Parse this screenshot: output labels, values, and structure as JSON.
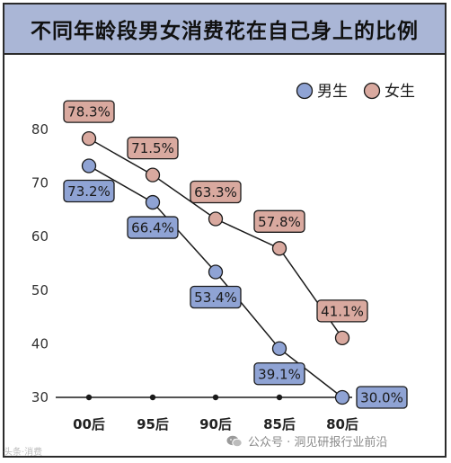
{
  "title": "不同年龄段男女消费花在自己身上的比例",
  "footer": {
    "watermark": "头条·消费",
    "source": "公众号 · 洞见研报行业前沿"
  },
  "colors": {
    "male": "#8fa3d4",
    "female": "#d9a99f",
    "title_bg": "#aab6d6"
  },
  "chart_data": {
    "type": "line",
    "title": "不同年龄段男女消费花在自己身上的比例",
    "categories": [
      "00后",
      "95后",
      "90后",
      "85后",
      "80后"
    ],
    "series": [
      {
        "name": "男生",
        "values": [
          73.2,
          66.4,
          53.4,
          39.1,
          30.0
        ],
        "labels": [
          "73.2%",
          "66.4%",
          "53.4%",
          "39.1%",
          "30.0%"
        ]
      },
      {
        "name": "女生",
        "values": [
          78.3,
          71.5,
          63.3,
          57.8,
          41.1
        ],
        "labels": [
          "78.3%",
          "71.5%",
          "63.3%",
          "57.8%",
          "41.1%"
        ]
      }
    ],
    "yticks": [
      30,
      40,
      50,
      60,
      70,
      80
    ],
    "ylim": [
      30,
      80
    ],
    "legend": "top-right",
    "grid": false
  }
}
